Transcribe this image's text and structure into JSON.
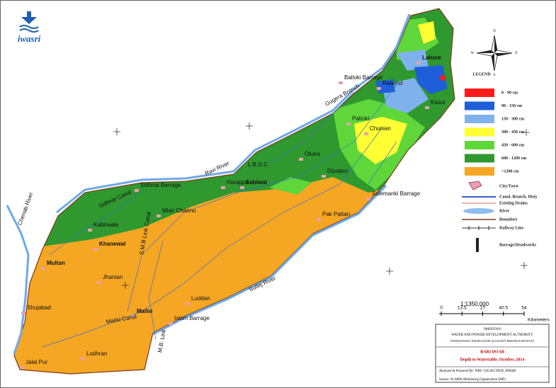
{
  "logo": "iwasri",
  "legend": {
    "title": "LEGEND",
    "items": [
      {
        "label": "0 - 90 cm",
        "color": "#ff1a1a"
      },
      {
        "label": "90 - 150 cm",
        "color": "#1e5ed8"
      },
      {
        "label": "150 - 300 cm",
        "color": "#7fb2ec"
      },
      {
        "label": "300 - 450 cm",
        "color": "#ffff33"
      },
      {
        "label": "450 - 600 cm",
        "color": "#5fd63a"
      },
      {
        "label": "600 - 1200 cm",
        "color": "#2f982f"
      },
      {
        "label": ">1200 cm",
        "color": "#f5a623"
      }
    ]
  },
  "symbols": [
    "City/Town",
    "Canal, Branch, Disty",
    "Existing Drains",
    "River",
    "Boundary",
    "Railway Line",
    "Barrage/Headworks"
  ],
  "scale": {
    "ratio": "1:1350,000",
    "ticks": [
      0,
      13.5,
      27,
      40.5,
      54
    ],
    "unit": "Kilometers"
  },
  "compass": [
    "N",
    "S",
    "E",
    "W"
  ],
  "title_block": {
    "country": "PAKISTAN",
    "authority": "WATER AND POWER DEVELOPMENT AUTHORITY",
    "institute": "INTERNATIONAL WATERLOGGING & SALINITY RESEARCH INSTITUTE",
    "region": "BARI DOAB",
    "subject": "Depth to Watertable, October, 2014",
    "prepared": "Analyzed & Prepared By: WRS- GIS SECTION, IWASRI",
    "source": "Source: SCARPs Monitoring Organization SMO."
  },
  "places": [
    "Lahore",
    "Raiwind",
    "Kasur",
    "Balloki Barrage",
    "Pattoki",
    "Chunian",
    "Okara",
    "Sahiwal",
    "Dipalpur",
    "Harappa",
    "Sidhnai Barrage",
    "Mian Channu",
    "Khanewal",
    "Multan",
    "Shujabad",
    "Jhanian",
    "Mailsi",
    "Islam Barrage",
    "Luddan",
    "Jalal Pur",
    "Pak Pattan",
    "Sulemanki Barrage",
    "Kabirwala",
    "Lodhran"
  ],
  "rivers": [
    "Ravi River",
    "Chenab River",
    "Sutlej River"
  ],
  "canals": [
    "Sidhnai Canal",
    "L.B.D.C",
    "Mailsi Canal",
    "S.M.B Link Canal",
    "Gugera Branch",
    "M.B. Link"
  ]
}
